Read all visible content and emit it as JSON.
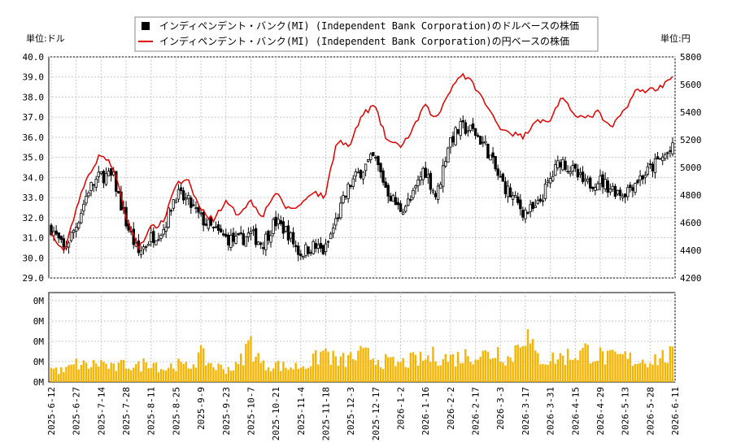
{
  "units": {
    "left": "単位:ドル",
    "right": "単位:円"
  },
  "legend": {
    "usd_label": "インディペンデント・バンク(MI) (Independent Bank Corporation)のドルベースの株価",
    "jpy_label": "インディペンデント・バンク(MI) (Independent Bank Corporation)の円ベースの株価"
  },
  "colors": {
    "usd": "#000000",
    "jpy": "#e00000",
    "volume": "#f5b400",
    "grid": "#c8c8c8"
  },
  "chart_data": [
    {
      "type": "line",
      "ylim_left": [
        29.0,
        40.0
      ],
      "ylim_right": [
        4200,
        5800
      ],
      "left_ticks": [
        "29.0",
        "30.0",
        "31.0",
        "32.0",
        "33.0",
        "34.0",
        "35.0",
        "36.0",
        "37.0",
        "38.0",
        "39.0",
        "40.0"
      ],
      "right_ticks": [
        "4200",
        "4400",
        "4600",
        "4800",
        "5000",
        "5200",
        "5400",
        "5600",
        "5800"
      ],
      "grid": true,
      "legend_position": "top",
      "x": [
        "2025-6-12",
        "2025-6-19",
        "2025-6-27",
        "2025-7-3",
        "2025-7-14",
        "2025-7-21",
        "2025-7-28",
        "2025-8-4",
        "2025-8-11",
        "2025-8-18",
        "2025-8-25",
        "2025-9-2",
        "2025-9-9",
        "2025-9-16",
        "2025-9-23",
        "2025-9-30",
        "2025-10-7",
        "2025-10-14",
        "2025-10-21",
        "2025-10-28",
        "2025-11-4",
        "2025-11-11",
        "2025-11-18",
        "2025-11-25",
        "2025-12-3",
        "2025-12-10",
        "2025-12-17",
        "2025-12-24",
        "2026-1-2",
        "2026-1-9",
        "2026-1-16",
        "2026-1-23",
        "2026-2-2",
        "2026-2-9",
        "2026-2-17",
        "2026-2-24",
        "2026-3-3",
        "2026-3-10",
        "2026-3-17",
        "2026-3-24",
        "2026-3-31",
        "2026-4-8",
        "2026-4-15",
        "2026-4-22",
        "2026-4-29",
        "2026-5-6",
        "2026-5-13",
        "2026-5-20",
        "2026-5-28",
        "2026-6-4",
        "2026-6-11"
      ],
      "series": [
        {
          "name": "インディペンデント・バンク(MI) (Independent Bank Corporation)のドルベースの株価",
          "style": "candlestick",
          "values": [
            31.5,
            30.4,
            31.6,
            33.4,
            34.1,
            34.0,
            31.8,
            30.2,
            31.0,
            31.4,
            33.2,
            32.8,
            32.0,
            31.4,
            31.0,
            30.8,
            31.2,
            30.7,
            31.8,
            31.3,
            30.2,
            30.6,
            30.3,
            32.0,
            33.6,
            34.4,
            35.0,
            33.4,
            32.4,
            32.9,
            34.5,
            33.0,
            35.8,
            36.5,
            36.3,
            35.5,
            34.0,
            33.1,
            32.3,
            32.4,
            33.7,
            34.9,
            34.3,
            33.6,
            33.9,
            33.5,
            33.2,
            33.8,
            34.3,
            34.9,
            35.4
          ]
        },
        {
          "name": "インディペンデント・バンク(MI) (Independent Bank Corporation)の円ベースの株価",
          "style": "line",
          "values": [
            4520,
            4380,
            4700,
            4950,
            5100,
            5000,
            4650,
            4420,
            4560,
            4600,
            4880,
            4900,
            4700,
            4620,
            4750,
            4660,
            4760,
            4650,
            4820,
            4700,
            4720,
            4830,
            4780,
            5200,
            5150,
            5380,
            5450,
            5200,
            5150,
            5250,
            5450,
            5350,
            5550,
            5680,
            5600,
            5450,
            5300,
            5250,
            5220,
            5350,
            5320,
            5500,
            5400,
            5350,
            5400,
            5280,
            5400,
            5550,
            5560,
            5580,
            5670
          ]
        },
        {
          "name": "volume",
          "style": "bar",
          "values": [
            0.15,
            0.12,
            0.2,
            0.18,
            0.22,
            0.15,
            0.2,
            0.17,
            0.25,
            0.14,
            0.2,
            0.16,
            0.3,
            0.18,
            0.15,
            0.17,
            0.45,
            0.18,
            0.2,
            0.16,
            0.18,
            0.22,
            0.35,
            0.22,
            0.26,
            0.3,
            0.28,
            0.22,
            0.2,
            0.24,
            0.25,
            0.3,
            0.26,
            0.28,
            0.32,
            0.3,
            0.35,
            0.25,
            0.6,
            0.28,
            0.25,
            0.28,
            0.3,
            0.35,
            0.3,
            0.26,
            0.28,
            0.24,
            0.25,
            0.27,
            0.3
          ]
        }
      ]
    },
    {
      "type": "bar",
      "y_ticks": [
        "0M",
        "0M",
        "0M",
        "0M",
        "0M"
      ],
      "x_ticks": [
        "2025-6-12",
        "2025-6-27",
        "2025-7-14",
        "2025-7-28",
        "2025-8-11",
        "2025-8-25",
        "2025-9-9",
        "2025-9-23",
        "2025-10-7",
        "2025-10-21",
        "2025-11-4",
        "2025-11-18",
        "2025-12-3",
        "2025-12-17",
        "2026-1-2",
        "2026-1-16",
        "2026-2-2",
        "2026-2-17",
        "2026-3-3",
        "2026-3-17",
        "2026-3-31",
        "2026-4-15",
        "2026-4-29",
        "2026-5-13",
        "2026-5-28",
        "2026-6-11"
      ]
    }
  ]
}
